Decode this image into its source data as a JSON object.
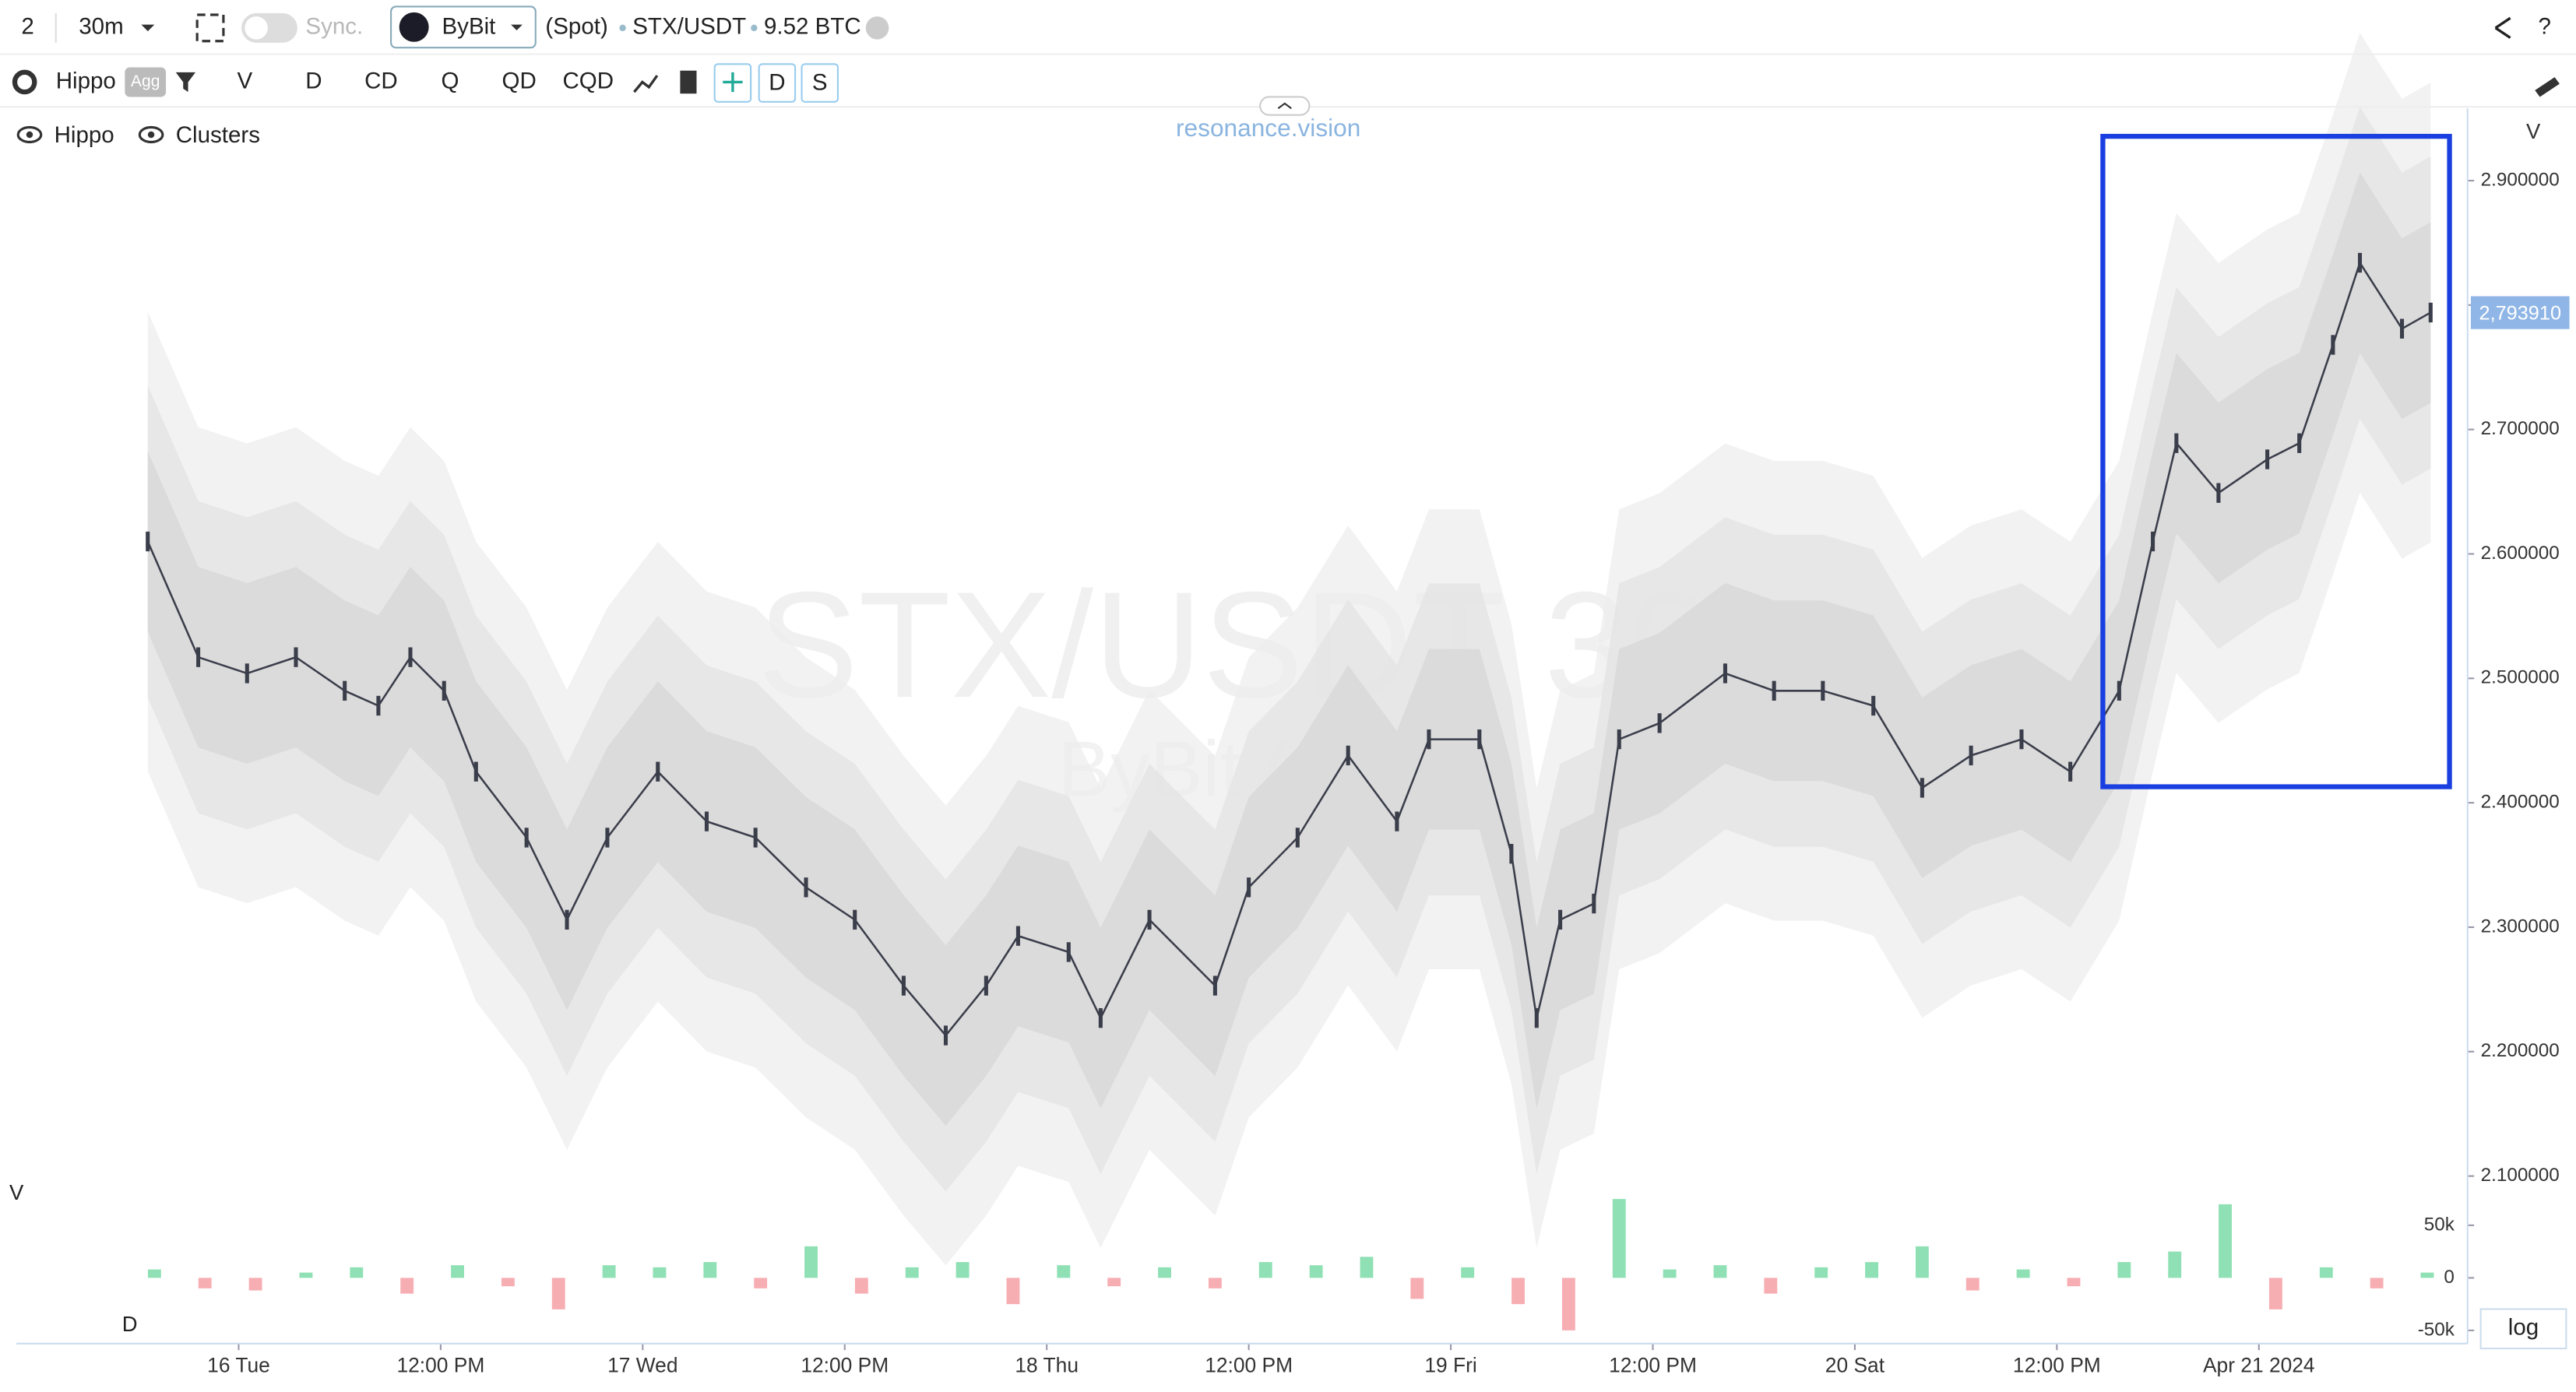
{
  "toolbar": {
    "layout": "2",
    "interval": "30m",
    "sync": "Sync.",
    "exchange": "ByBit",
    "market": "(Spot)",
    "symbol": "STX/USDT",
    "volume": "9.52 BTC",
    "help": "?",
    "indicator": "Hippo",
    "agg": "Agg",
    "buttons": [
      "V",
      "D",
      "CD",
      "Q",
      "QD",
      "CQD"
    ],
    "toggles": [
      "D",
      "S"
    ]
  },
  "legend": [
    "Hippo",
    "Clusters"
  ],
  "watermark": {
    "site": "resonance.vision",
    "main": "STX/USDT 30m",
    "sub": "ByBit (Spot)"
  },
  "panels": {
    "price_axis": "V",
    "volume": "V",
    "delta": "D",
    "log": "log"
  },
  "chart_data": [
    {
      "type": "line",
      "color": "#3a3d4a",
      "x": [
        -5.4,
        -2.4,
        0.5,
        3.4,
        6.3,
        8.3,
        10.2,
        12.2,
        14.1,
        17.1,
        19.5,
        21.9,
        24.9,
        27.8,
        30.7,
        33.7,
        36.6,
        39.5,
        42,
        44.4,
        46.3,
        49.3,
        51.2,
        54.1,
        58,
        60,
        62.9,
        65.9,
        68.8,
        70.7,
        73.7,
        75.6,
        77.1,
        78.5,
        80.5,
        82,
        84.4,
        88.3,
        91.2,
        94.1,
        97.1,
        100,
        102.9,
        105.9,
        108.8,
        111.7,
        113.7,
        115.1,
        117.6,
        120.5,
        122.4,
        124.4,
        126,
        128.5,
        130.2
      ],
      "values": [
        2.61,
        2.517,
        2.504,
        2.517,
        2.49,
        2.478,
        2.517,
        2.49,
        2.425,
        2.372,
        2.306,
        2.372,
        2.425,
        2.385,
        2.372,
        2.332,
        2.306,
        2.253,
        2.213,
        2.253,
        2.293,
        2.28,
        2.227,
        2.306,
        2.253,
        2.332,
        2.372,
        2.438,
        2.385,
        2.451,
        2.451,
        2.359,
        2.227,
        2.306,
        2.319,
        2.451,
        2.464,
        2.504,
        2.49,
        2.49,
        2.478,
        2.412,
        2.438,
        2.451,
        2.425,
        2.49,
        2.61,
        2.689,
        2.649,
        2.676,
        2.689,
        2.768,
        2.834,
        2.781,
        2.794
      ],
      "xlim": [
        -13.2,
        132.2
      ],
      "xticks": [
        {
          "value": 0,
          "label": "16 Tue"
        },
        {
          "value": 12,
          "label": "12:00 PM"
        },
        {
          "value": 24,
          "label": "17 Wed"
        },
        {
          "value": 36,
          "label": "12:00 PM"
        },
        {
          "value": 48,
          "label": "18 Thu"
        },
        {
          "value": 60,
          "label": "12:00 PM"
        },
        {
          "value": 72,
          "label": "19 Fri"
        },
        {
          "value": 84,
          "label": "12:00 PM"
        },
        {
          "value": 96,
          "label": "20 Sat"
        },
        {
          "value": 108,
          "label": "12:00 PM"
        },
        {
          "value": 120,
          "label": "Apr 21 2024"
        }
      ],
      "ylim": [
        2.05,
        2.95
      ],
      "yticks": [
        {
          "value": 2.1,
          "label": "2.100000"
        },
        {
          "value": 2.2,
          "label": "2.200000"
        },
        {
          "value": 2.3,
          "label": "2.300000"
        },
        {
          "value": 2.4,
          "label": "2.400000"
        },
        {
          "value": 2.5,
          "label": "2.500000"
        },
        {
          "value": 2.6,
          "label": "2.600000"
        },
        {
          "value": 2.7,
          "label": "2.700000"
        },
        {
          "value": 2.8,
          "label": "2.800000"
        },
        {
          "value": 2.9,
          "label": "2.900000"
        }
      ],
      "last_price": {
        "value": 2.79391,
        "label": "2,793910"
      }
    },
    {
      "type": "bar",
      "positive_color": "#8fe0b4",
      "negative_color": "#f7aeb3",
      "x": [
        -5,
        -2,
        1,
        4,
        7,
        10,
        13,
        16,
        19,
        22,
        25,
        28,
        31,
        34,
        37,
        40,
        43,
        46,
        49,
        52,
        55,
        58,
        61,
        64,
        67,
        70,
        73,
        76,
        79,
        82,
        85,
        88,
        91,
        94,
        97,
        100,
        103,
        106,
        109,
        112,
        115,
        118,
        121,
        124,
        127,
        130
      ],
      "values": [
        8000,
        -10000,
        -12000,
        5000,
        10000,
        -15000,
        12000,
        -8000,
        -30000,
        12000,
        10000,
        15000,
        -10000,
        30000,
        -15000,
        10000,
        15000,
        -25000,
        12000,
        -8000,
        10000,
        -10000,
        15000,
        12000,
        20000,
        -20000,
        10000,
        -25000,
        -50000,
        75000,
        8000,
        12000,
        -15000,
        10000,
        15000,
        30000,
        -12000,
        8000,
        -8000,
        15000,
        25000,
        70000,
        -30000,
        10000,
        -10000,
        5000
      ],
      "xlim": [
        -13.2,
        132.2
      ],
      "ylim": [
        -60000,
        90000
      ],
      "yticks": [
        {
          "value": 50000,
          "label": "50k"
        },
        0,
        {
          "value": -50000,
          "label": "-50k"
        }
      ]
    }
  ]
}
